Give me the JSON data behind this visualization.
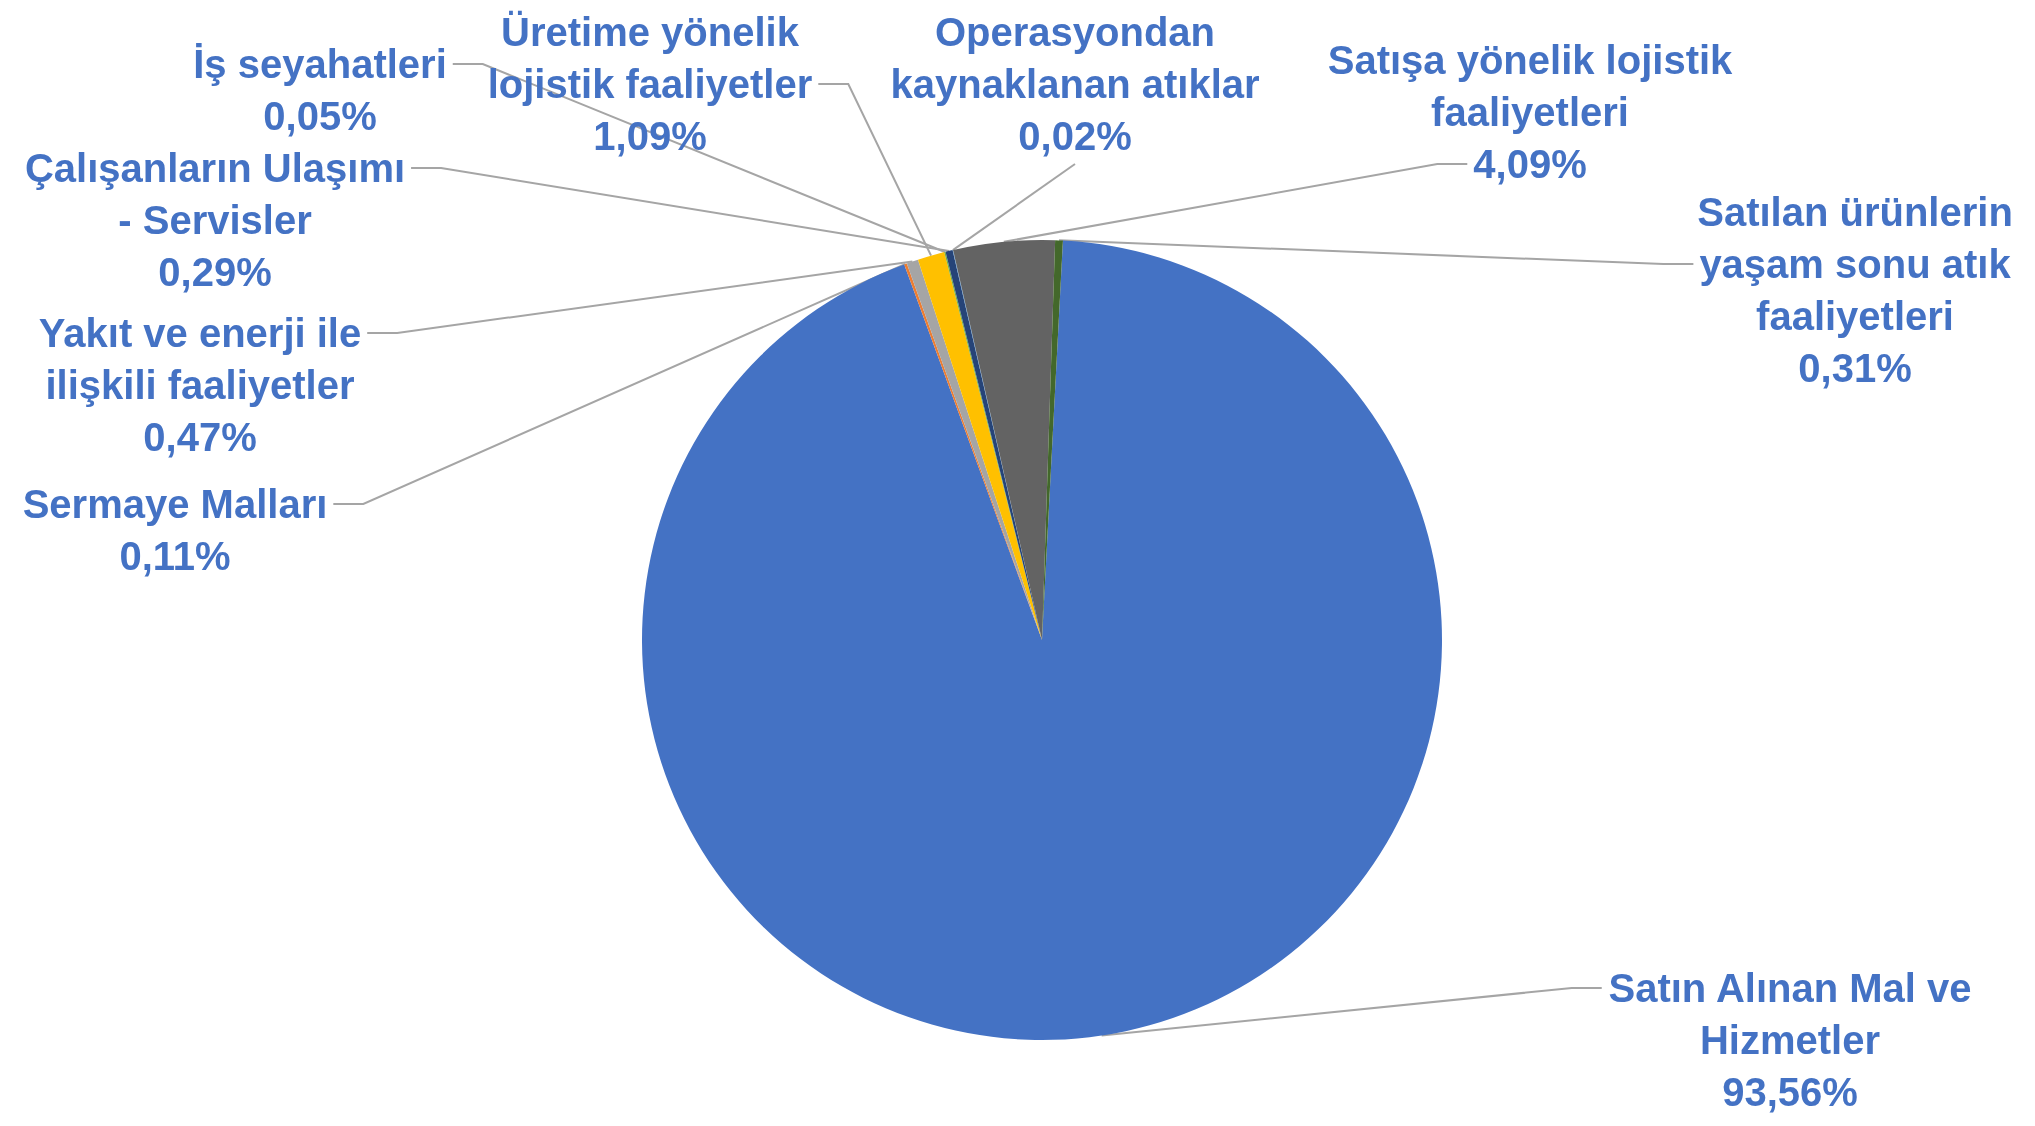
{
  "chart_data": {
    "type": "pie",
    "categories": [
      "Satın Alınan Mal ve Hizmetler",
      "Sermaye Malları",
      "Yakıt ve enerji ile ilişkili faaliyetler",
      "Üretime yönelik lojistik faaliyetler",
      "İş seyahatleri",
      "Çalışanların Ulaşımı - Servisler",
      "Operasyondan kaynaklanan atıklar",
      "Satışa yönelik lojistik faaliyetleri",
      "Satılan ürünlerin yaşam sonu atık faaliyetleri"
    ],
    "values": [
      93.56,
      0.11,
      0.47,
      1.09,
      0.05,
      0.29,
      0.02,
      4.09,
      0.31
    ],
    "colors": [
      "#4472c4",
      "#ed7d31",
      "#a5a5a5",
      "#ffc000",
      "#70ad47",
      "#264478",
      "#5b9bd5",
      "#636363",
      "#43682b"
    ],
    "value_labels": [
      "93,56%",
      "0,11%",
      "0,47%",
      "1,09%",
      "0,05%",
      "0,29%",
      "0,02%",
      "4,09%",
      "0,31%"
    ]
  }
}
